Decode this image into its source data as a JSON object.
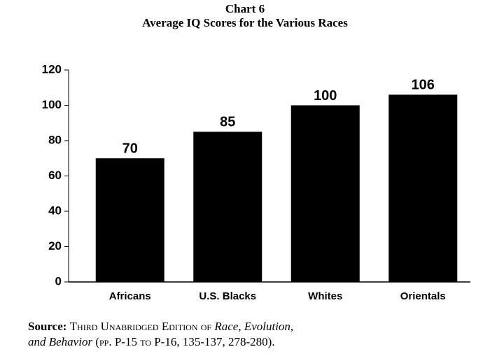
{
  "chart_data": {
    "type": "bar",
    "title": "Chart 6",
    "subtitle": "Average IQ Scores for the Various Races",
    "categories": [
      "Africans",
      "U.S. Blacks",
      "Whites",
      "Orientals"
    ],
    "values": [
      70,
      85,
      100,
      106
    ],
    "color": "#000000",
    "ylim": [
      0,
      120
    ],
    "yticks": [
      0,
      20,
      40,
      60,
      80,
      100,
      120
    ],
    "grid": false,
    "source": [
      "Source:",
      "Third Unabridged Edition of",
      "Race, Evolution,",
      "and Behavior",
      "(pp. P-15 to P-16, 135-137, 278-280)."
    ]
  }
}
